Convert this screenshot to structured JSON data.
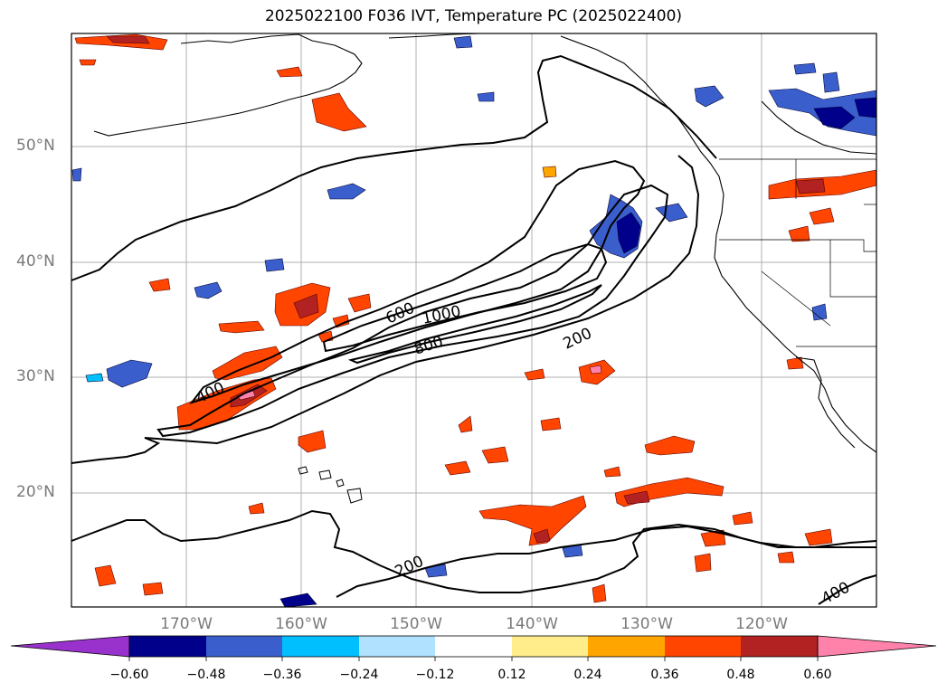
{
  "title": "2025022100 F036 IVT, Temperature PC (2025022400)",
  "map": {
    "lon_range": [
      -180,
      -110
    ],
    "lat_range": [
      10,
      60
    ],
    "lat_labels": [
      "50°N",
      "40°N",
      "30°N",
      "20°N"
    ],
    "lon_labels": [
      "170°W",
      "160°W",
      "150°W",
      "140°W",
      "130°W",
      "120°W"
    ],
    "contour_labels": [
      "600",
      "1000",
      "800",
      "400",
      "200",
      "200",
      "400"
    ]
  },
  "colorbar": {
    "ticks": [
      "−0.60",
      "−0.48",
      "−0.36",
      "−0.24",
      "−0.12",
      "0.12",
      "0.24",
      "0.36",
      "0.48",
      "0.60"
    ],
    "colors": [
      "#9932cc",
      "#00008b",
      "#3a5fcd",
      "#00bfff",
      "#b0e2ff",
      "#ffffff",
      "#ffec8b",
      "#ffa500",
      "#ff4500",
      "#b22222",
      "#ff82ab"
    ]
  }
}
